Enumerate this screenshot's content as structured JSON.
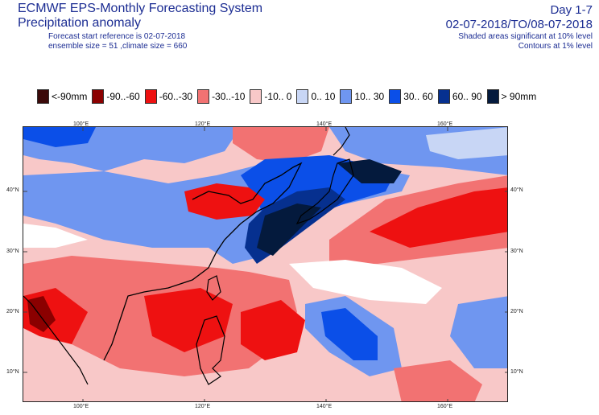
{
  "header": {
    "system": "ECMWF EPS-Monthly Forecasting System",
    "product": "Precipitation anomaly",
    "start_ref": "Forecast start reference is 02-07-2018",
    "ensemble": "ensemble size = 51  ,climate size = 660",
    "day_range": "Day 1-7",
    "period": "02-07-2018/TO/08-07-2018",
    "shaded_note": "Shaded areas significant at 10% level",
    "contour_note": "Contours at 1% level"
  },
  "legend": [
    {
      "label": "<-90mm",
      "color": "#3b0a0a"
    },
    {
      "label": "-90..-60",
      "color": "#8b0000"
    },
    {
      "label": "-60..-30",
      "color": "#ee1111"
    },
    {
      "label": "-30..-10",
      "color": "#f27272"
    },
    {
      "label": "-10..  0",
      "color": "#f8c8c8"
    },
    {
      "label": "0.. 10",
      "color": "#c8d6f5"
    },
    {
      "label": "10.. 30",
      "color": "#6f96f0"
    },
    {
      "label": "30.. 60",
      "color": "#0b4fe8"
    },
    {
      "label": "60.. 90",
      "color": "#06308f"
    },
    {
      "label": ">  90mm",
      "color": "#041a3d"
    }
  ],
  "axes": {
    "lon_labels": [
      "100°E",
      "120°E",
      "140°E",
      "160°E"
    ],
    "lat_labels": [
      "40°N",
      "30°N",
      "20°N",
      "10°N"
    ]
  }
}
